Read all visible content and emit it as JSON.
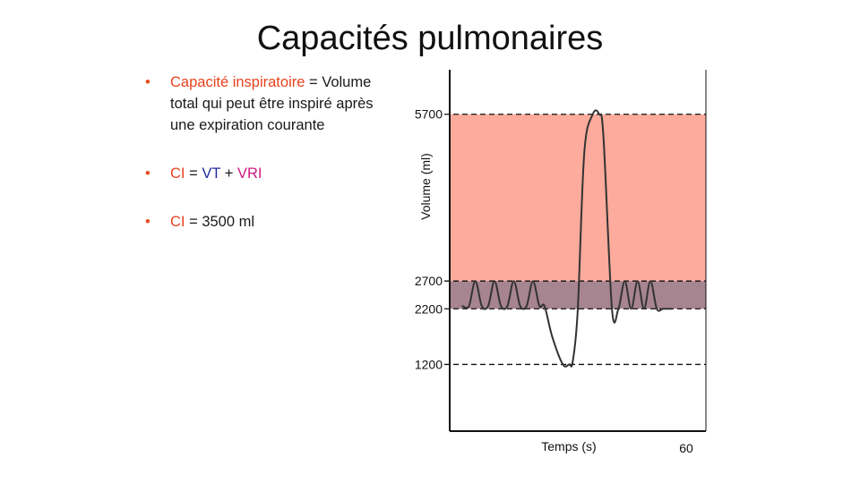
{
  "title": "Capacités pulmonaires",
  "bullets": {
    "b1": {
      "term": "Capacité inspiratoire",
      "eq": "=",
      "rest": "Volume total qui peut être inspiré après une expiration courante"
    },
    "b2": {
      "ci": "CI",
      "eq": "=",
      "vt": "VT",
      "plus": "+",
      "vri": "VRI"
    },
    "b3": {
      "ci": "CI",
      "rest": "= 3500 ml"
    }
  },
  "colors": {
    "ci": "#e8421c",
    "vt": "#1f2aa0",
    "vri": "#d0187f",
    "band_upper": "#fcab9c",
    "band_lower": "#a68490"
  },
  "chart_data": {
    "type": "line",
    "xlabel": "Temps (s)",
    "ylabel": "Volume (ml)",
    "x_tick": "60",
    "xlim": [
      0,
      60
    ],
    "ylim": [
      0,
      6500
    ],
    "y_ticks": [
      {
        "value": 5700,
        "label": "5700"
      },
      {
        "value": 2700,
        "label": "2700"
      },
      {
        "value": 2200,
        "label": "2200"
      },
      {
        "value": 1200,
        "label": "1200"
      }
    ],
    "bands": [
      {
        "from": 2700,
        "to": 5700,
        "color": "#fcab9c"
      },
      {
        "from": 2200,
        "to": 2700,
        "color": "#a68490"
      }
    ],
    "trace": {
      "x": [
        3,
        4.5,
        6,
        7.5,
        9,
        10.5,
        12,
        13.5,
        15,
        16.5,
        18,
        19.5,
        21,
        22.2,
        24,
        26.5,
        28,
        28.8,
        30,
        31.5,
        33.5,
        35,
        36,
        38,
        39.5,
        41,
        42.5,
        44,
        45.5,
        47,
        48.5,
        50,
        52
      ],
      "y": [
        2250,
        2250,
        2700,
        2250,
        2250,
        2700,
        2250,
        2250,
        2700,
        2250,
        2250,
        2700,
        2250,
        2250,
        1700,
        1200,
        1200,
        1250,
        2200,
        5000,
        5700,
        5700,
        5300,
        2200,
        2200,
        2700,
        2200,
        2700,
        2200,
        2700,
        2200,
        2200,
        2200
      ]
    }
  }
}
